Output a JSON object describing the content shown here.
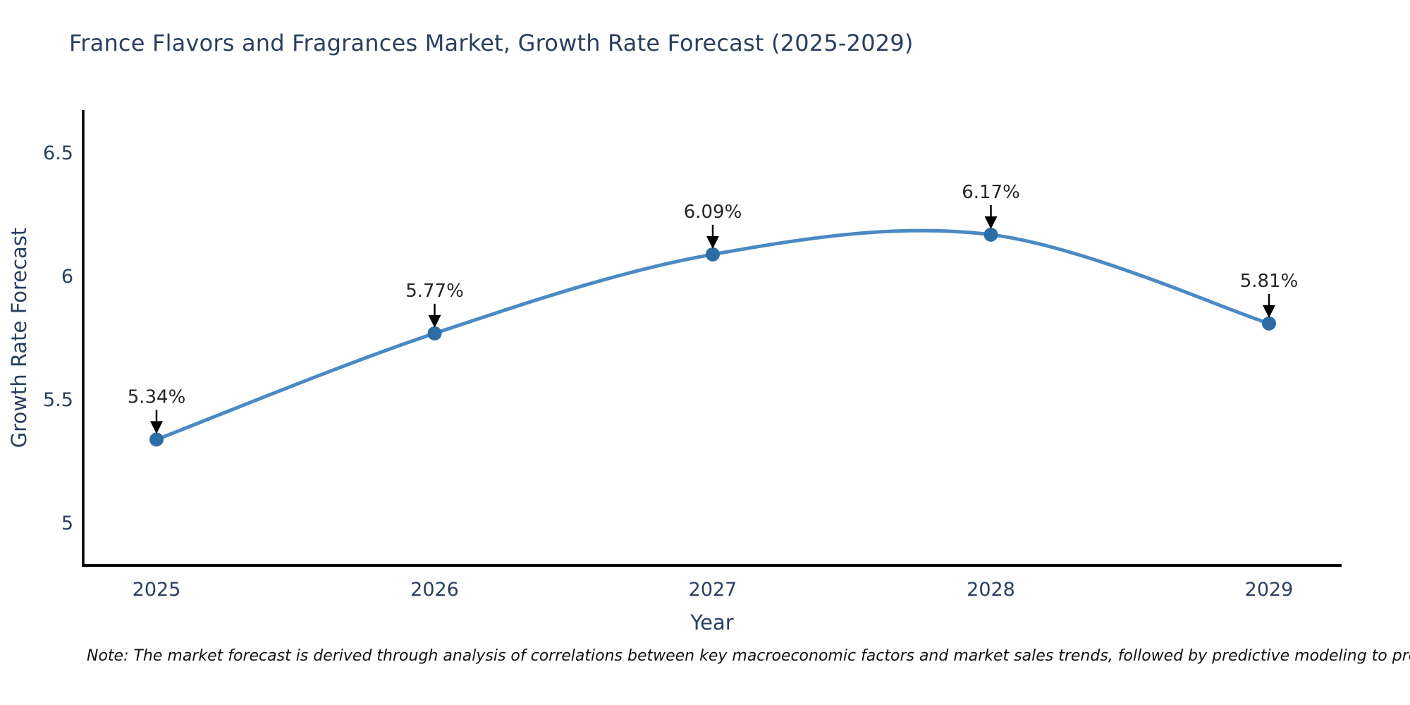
{
  "title": "France Flavors and Fragrances Market, Growth Rate Forecast (2025-2029)",
  "note": "Note: The market forecast is derived through analysis of correlations between key macroeconomic factors and market sales trends, followed by predictive modeling to project future sales",
  "chart_data": {
    "type": "line",
    "title": "France Flavors and Fragrances Market, Growth Rate Forecast (2025-2029)",
    "xlabel": "Year",
    "ylabel": "Growth Rate Forecast",
    "categories": [
      "2025",
      "2026",
      "2027",
      "2028",
      "2029"
    ],
    "series": [
      {
        "name": "Growth Rate Forecast",
        "values": [
          5.34,
          5.77,
          6.09,
          6.17,
          5.81
        ]
      }
    ],
    "data_labels": [
      "5.34%",
      "5.77%",
      "6.09%",
      "6.17%",
      "5.81%"
    ],
    "yticks": [
      6.5,
      6.0,
      5.5,
      5.0
    ],
    "ytick_labels": [
      "6.5",
      "6",
      "5.5",
      "5"
    ],
    "ylim": [
      4.83,
      6.675
    ],
    "line_shape": "spline",
    "grid": false,
    "legend_position": "none",
    "annotations_arrow": true,
    "colors": {
      "line": "#4b8ac4",
      "marker": "#2d6da6",
      "axis": "#000000",
      "axis_text": "#2a3f5f",
      "annotation_text": "#262626",
      "arrow": "#000000",
      "title": "#2a3f5f"
    }
  }
}
